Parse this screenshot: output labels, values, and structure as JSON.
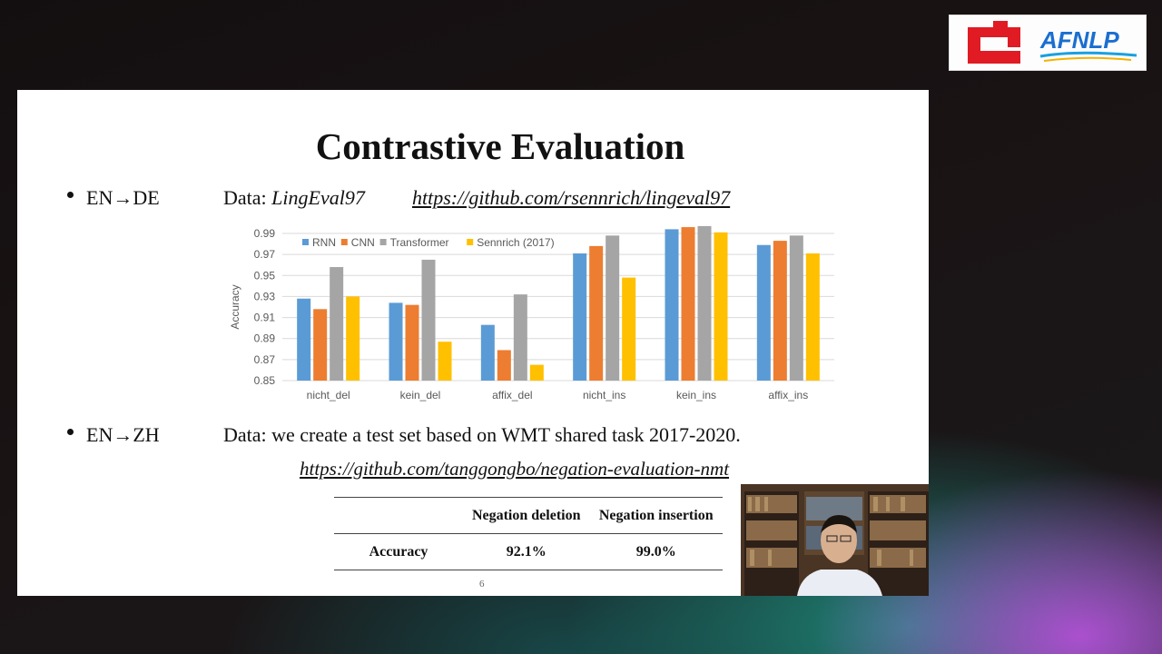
{
  "logo": {
    "text": "AFNLP"
  },
  "slide": {
    "title": "Contrastive Evaluation",
    "row1": {
      "lang": "EN→DE",
      "data_prefix": "Data: ",
      "data_name": "LingEval97",
      "link": "https://github.com/rsennrich/lingeval97"
    },
    "row2": {
      "lang": "EN→ZH",
      "data_text": "Data: we create a test set based on WMT shared task 2017-2020.",
      "link": "https://github.com/tanggongbo/negation-evaluation-nmt"
    },
    "table": {
      "headers": [
        "",
        "Negation deletion",
        "Negation insertion"
      ],
      "row": {
        "label": "Accuracy",
        "values": [
          "92.1%",
          "99.0%"
        ]
      }
    },
    "page_number": "6"
  },
  "chart_data": {
    "type": "bar",
    "ylabel": "Accuracy",
    "categories": [
      "nicht_del",
      "kein_del",
      "affix_del",
      "nicht_ins",
      "kein_ins",
      "affix_ins"
    ],
    "ylim": [
      0.85,
      0.99
    ],
    "yticks": [
      "0.85",
      "0.87",
      "0.89",
      "0.91",
      "0.93",
      "0.95",
      "0.97",
      "0.99"
    ],
    "grid": true,
    "legend_position": "top-left",
    "series": [
      {
        "name": "RNN",
        "color": "#5b9bd5",
        "values": [
          0.928,
          0.924,
          0.903,
          0.971,
          0.994,
          0.979
        ]
      },
      {
        "name": "CNN",
        "color": "#ed7d31",
        "values": [
          0.918,
          0.922,
          0.879,
          0.978,
          0.996,
          0.983
        ]
      },
      {
        "name": "Transformer",
        "color": "#a5a5a5",
        "values": [
          0.958,
          0.965,
          0.932,
          0.988,
          0.997,
          0.988
        ]
      },
      {
        "name": "Sennrich (2017)",
        "color": "#ffc000",
        "values": [
          0.93,
          0.887,
          0.865,
          0.948,
          0.991,
          0.971
        ]
      }
    ]
  }
}
